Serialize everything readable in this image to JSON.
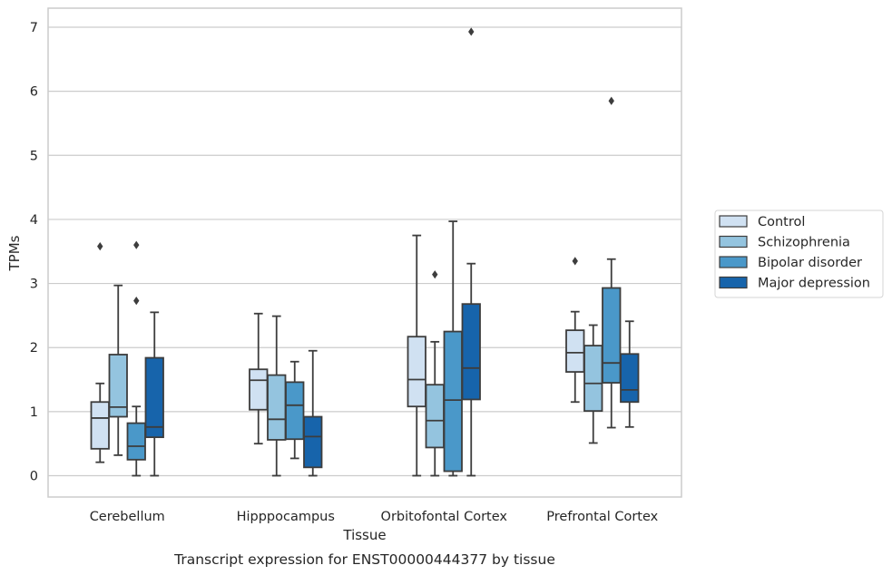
{
  "chart_data": {
    "type": "box",
    "title": "",
    "caption": "Transcript expression for ENST00000444377 by tissue",
    "xlabel": "Tissue",
    "ylabel": "TPMs",
    "ylim": [
      -0.33,
      7.3
    ],
    "yticks": [
      "0",
      "1",
      "2",
      "3",
      "4",
      "5",
      "6",
      "7"
    ],
    "grid": true,
    "legend_position": "right",
    "categories": [
      "Cerebellum",
      "Hipppocampus",
      "Orbitofontal Cortex",
      "Prefrontal Cortex"
    ],
    "series": [
      {
        "name": "Control",
        "color": "#d0e1f2",
        "boxes": [
          {
            "whislo": 0.21,
            "q1": 0.42,
            "med": 0.9,
            "q3": 1.15,
            "whishi": 1.44,
            "fliers": [
              3.58
            ]
          },
          {
            "whislo": 0.5,
            "q1": 1.03,
            "med": 1.49,
            "q3": 1.66,
            "whishi": 2.53,
            "fliers": []
          },
          {
            "whislo": 0.0,
            "q1": 1.08,
            "med": 1.5,
            "q3": 2.17,
            "whishi": 3.75,
            "fliers": []
          },
          {
            "whislo": 1.15,
            "q1": 1.62,
            "med": 1.92,
            "q3": 2.27,
            "whishi": 2.56,
            "fliers": [
              3.35
            ]
          }
        ]
      },
      {
        "name": "Schizophrenia",
        "color": "#94c4df",
        "boxes": [
          {
            "whislo": 0.32,
            "q1": 0.92,
            "med": 1.07,
            "q3": 1.89,
            "whishi": 2.97,
            "fliers": []
          },
          {
            "whislo": 0.0,
            "q1": 0.56,
            "med": 0.88,
            "q3": 1.57,
            "whishi": 2.49,
            "fliers": []
          },
          {
            "whislo": 0.0,
            "q1": 0.44,
            "med": 0.86,
            "q3": 1.42,
            "whishi": 2.09,
            "fliers": [
              3.14
            ]
          },
          {
            "whislo": 0.51,
            "q1": 1.01,
            "med": 1.44,
            "q3": 2.03,
            "whishi": 2.35,
            "fliers": []
          }
        ]
      },
      {
        "name": "Bipolar disorder",
        "color": "#4a98c9",
        "boxes": [
          {
            "whislo": 0.0,
            "q1": 0.25,
            "med": 0.46,
            "q3": 0.82,
            "whishi": 1.08,
            "fliers": [
              2.73,
              3.6
            ]
          },
          {
            "whislo": 0.27,
            "q1": 0.57,
            "med": 1.1,
            "q3": 1.46,
            "whishi": 1.78,
            "fliers": []
          },
          {
            "whislo": 0.0,
            "q1": 0.07,
            "med": 1.18,
            "q3": 2.25,
            "whishi": 3.97,
            "fliers": []
          },
          {
            "whislo": 0.75,
            "q1": 1.45,
            "med": 1.76,
            "q3": 2.93,
            "whishi": 3.38,
            "fliers": [
              5.85
            ]
          }
        ]
      },
      {
        "name": "Major depression",
        "color": "#1764ab",
        "boxes": [
          {
            "whislo": 0.0,
            "q1": 0.6,
            "med": 0.76,
            "q3": 1.84,
            "whishi": 2.55,
            "fliers": []
          },
          {
            "whislo": 0.0,
            "q1": 0.13,
            "med": 0.61,
            "q3": 0.92,
            "whishi": 1.95,
            "fliers": []
          },
          {
            "whislo": 0.0,
            "q1": 1.19,
            "med": 1.68,
            "q3": 2.68,
            "whishi": 3.31,
            "fliers": [
              6.93
            ]
          },
          {
            "whislo": 0.76,
            "q1": 1.15,
            "med": 1.34,
            "q3": 1.9,
            "whishi": 2.41,
            "fliers": []
          }
        ]
      }
    ]
  }
}
